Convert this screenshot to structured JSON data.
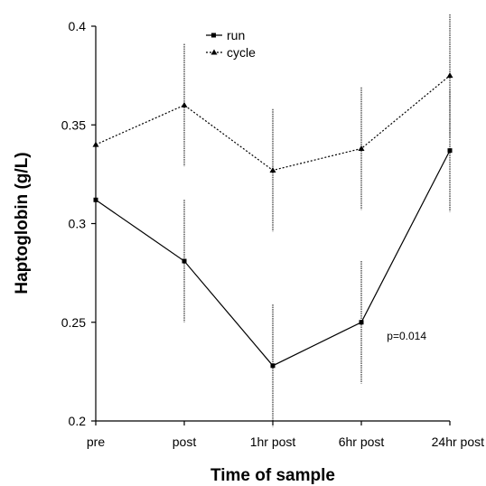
{
  "chart_data": {
    "type": "line",
    "categories": [
      "pre",
      "post",
      "1hr post",
      "6hr post",
      "24hr post"
    ],
    "xlabel": "Time of sample",
    "ylabel": "Haptoglobin (g/L)",
    "ylim": [
      0.2,
      0.4
    ],
    "yticks": [
      "0.2",
      "0.25",
      "0.3",
      "0.35",
      "0.4"
    ],
    "grid": false,
    "legend_position": "top-center",
    "annotation": "p=0.014",
    "series": [
      {
        "name": "run",
        "line_style": "solid",
        "marker": "square",
        "values": [
          0.312,
          0.281,
          0.228,
          0.25,
          0.337
        ],
        "error": [
          0.031,
          0.031,
          0.031,
          0.031,
          0.031
        ]
      },
      {
        "name": "cycle",
        "line_style": "dotted",
        "marker": "triangle",
        "values": [
          0.34,
          0.36,
          0.327,
          0.338,
          0.375
        ],
        "error": [
          0.031,
          0.031,
          0.031,
          0.031,
          0.031
        ]
      }
    ]
  }
}
